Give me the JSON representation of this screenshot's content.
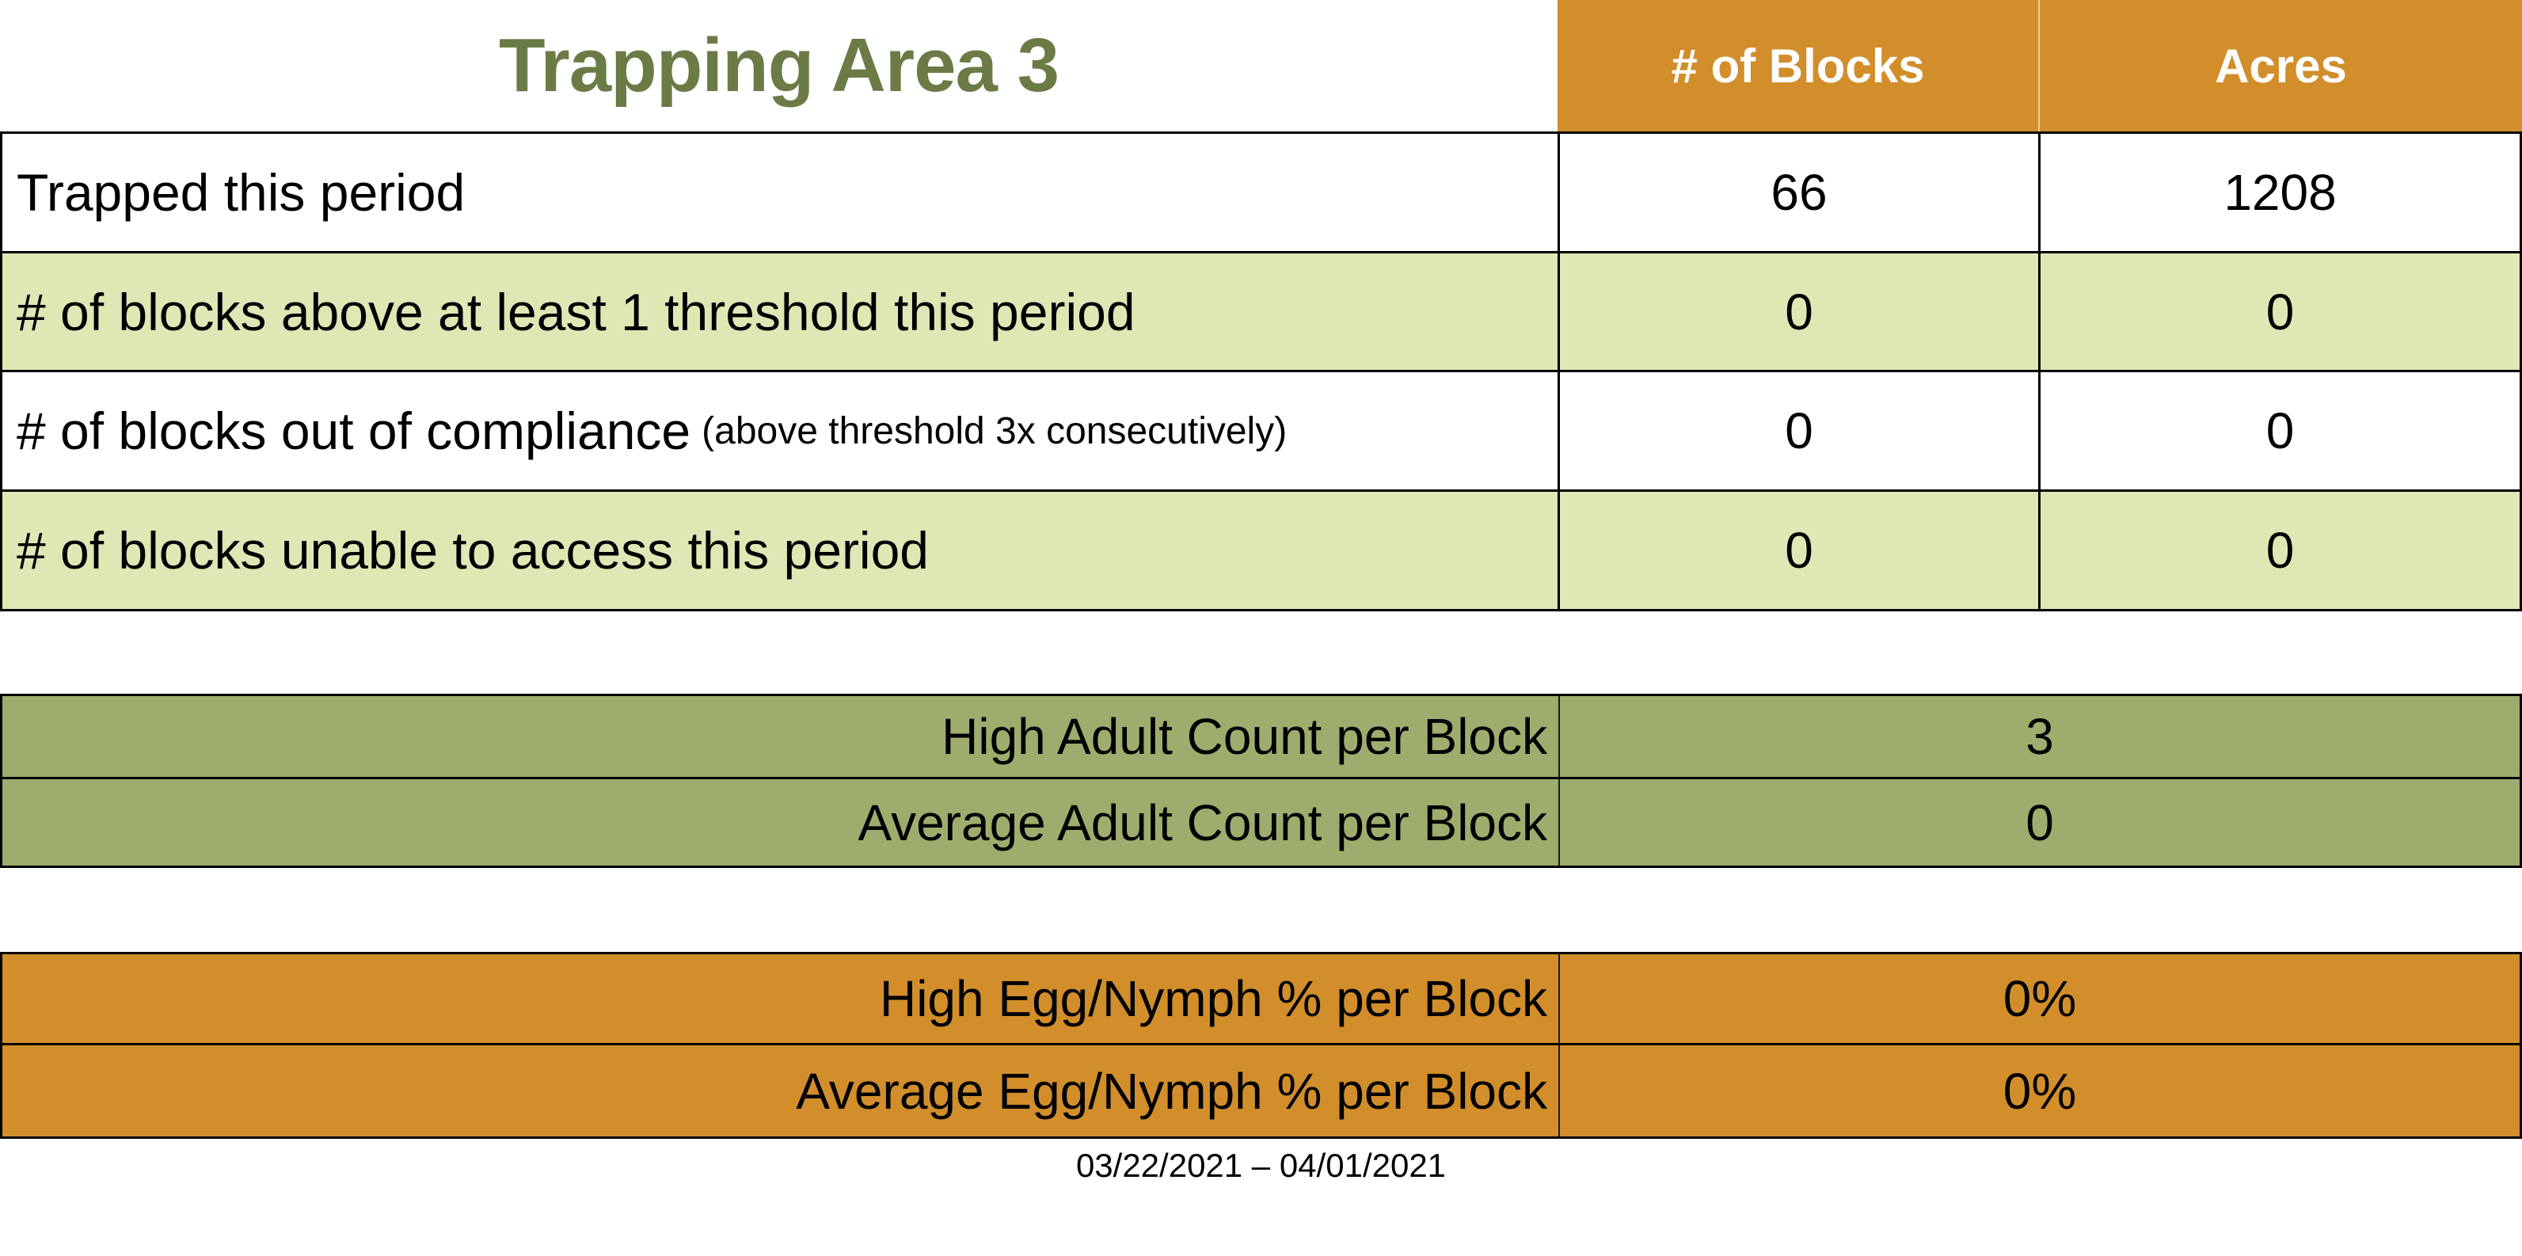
{
  "title": "Trapping Area 3",
  "header": {
    "col_blocks": "# of Blocks",
    "col_acres": "Acres"
  },
  "summary_table": {
    "rows": [
      {
        "label": "Trapped this period",
        "note": "",
        "blocks": "66",
        "acres": "1208"
      },
      {
        "label": "# of blocks above at least 1 threshold this period",
        "note": "",
        "blocks": "0",
        "acres": "0"
      },
      {
        "label": "# of blocks out of compliance",
        "note": "(above threshold 3x consecutively)",
        "blocks": "0",
        "acres": "0"
      },
      {
        "label": "# of blocks unable to access this period",
        "note": "",
        "blocks": "0",
        "acres": "0"
      }
    ]
  },
  "adult_counts": {
    "rows": [
      {
        "label": "High Adult Count per Block",
        "value": "3"
      },
      {
        "label": "Average Adult Count per Block",
        "value": "0"
      }
    ]
  },
  "egg_nymph": {
    "rows": [
      {
        "label": "High Egg/Nymph % per Block",
        "value": "0%"
      },
      {
        "label": "Average Egg/Nymph % per Block",
        "value": "0%"
      }
    ]
  },
  "date_range": "03/22/2021 – 04/01/2021",
  "colors": {
    "header_orange": "#D28E2B",
    "row_light_green": "#DDE8B5",
    "band_olive": "#9DAD6E",
    "title_green": "#6B7B45",
    "border_black": "#000000",
    "header_text_white": "#FFFFFF"
  }
}
